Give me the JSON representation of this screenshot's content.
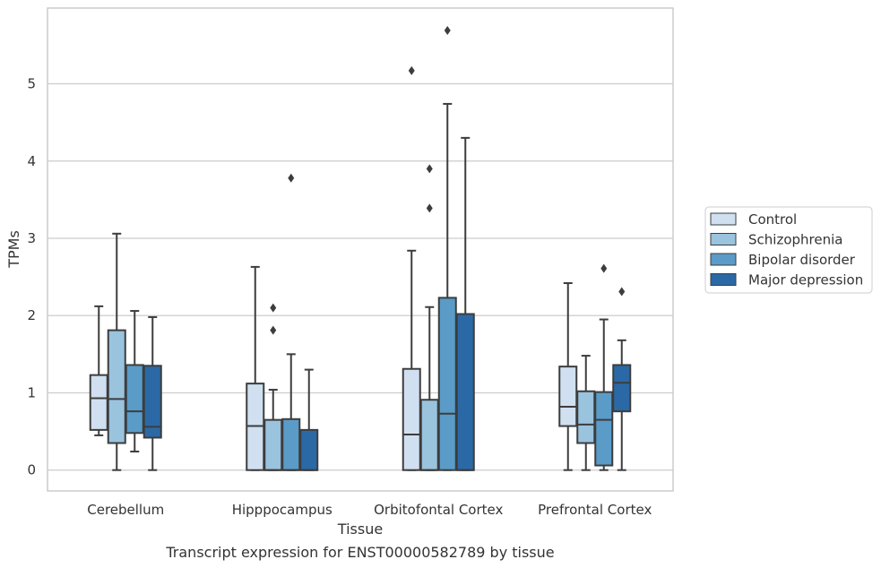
{
  "chart_data": {
    "type": "box",
    "title": "",
    "caption": "Transcript expression for ENST00000582789 by tissue",
    "xlabel": "Tissue",
    "ylabel": "TPMs",
    "ylim": [
      -0.27,
      5.98
    ],
    "yticks": [
      0,
      1,
      2,
      3,
      4,
      5
    ],
    "grid": "horizontal",
    "legend_position": "right",
    "categories": [
      "Cerebellum",
      "Hipppocampus",
      "Orbitofontal Cortex",
      "Prefrontal Cortex"
    ],
    "series": [
      {
        "name": "Control",
        "color": "#d0e0f1",
        "boxes": [
          {
            "whisker_low": 0.45,
            "q1": 0.52,
            "median": 0.93,
            "q3": 1.23,
            "whisker_high": 2.12,
            "outliers": []
          },
          {
            "whisker_low": 0.0,
            "q1": 0.0,
            "median": 0.57,
            "q3": 1.12,
            "whisker_high": 2.63,
            "outliers": []
          },
          {
            "whisker_low": 0.0,
            "q1": 0.0,
            "median": 0.46,
            "q3": 1.31,
            "whisker_high": 2.84,
            "outliers": [
              5.17
            ]
          },
          {
            "whisker_low": 0.0,
            "q1": 0.57,
            "median": 0.82,
            "q3": 1.34,
            "whisker_high": 2.42,
            "outliers": []
          }
        ]
      },
      {
        "name": "Schizophrenia",
        "color": "#9ac3de",
        "boxes": [
          {
            "whisker_low": 0.0,
            "q1": 0.35,
            "median": 0.92,
            "q3": 1.81,
            "whisker_high": 3.06,
            "outliers": []
          },
          {
            "whisker_low": 0.0,
            "q1": 0.0,
            "median": 0.0,
            "q3": 0.65,
            "whisker_high": 1.04,
            "outliers": [
              1.81,
              2.1
            ]
          },
          {
            "whisker_low": 0.0,
            "q1": 0.0,
            "median": 0.0,
            "q3": 0.91,
            "whisker_high": 2.11,
            "outliers": [
              3.39,
              3.9
            ]
          },
          {
            "whisker_low": 0.0,
            "q1": 0.35,
            "median": 0.59,
            "q3": 1.02,
            "whisker_high": 1.48,
            "outliers": []
          }
        ]
      },
      {
        "name": "Bipolar disorder",
        "color": "#5a9bc8",
        "boxes": [
          {
            "whisker_low": 0.24,
            "q1": 0.48,
            "median": 0.76,
            "q3": 1.36,
            "whisker_high": 2.06,
            "outliers": []
          },
          {
            "whisker_low": 0.0,
            "q1": 0.0,
            "median": 0.0,
            "q3": 0.66,
            "whisker_high": 1.5,
            "outliers": [
              3.78
            ]
          },
          {
            "whisker_low": 0.0,
            "q1": 0.0,
            "median": 0.73,
            "q3": 2.23,
            "whisker_high": 4.74,
            "outliers": [
              5.69
            ]
          },
          {
            "whisker_low": 0.0,
            "q1": 0.06,
            "median": 0.65,
            "q3": 1.01,
            "whisker_high": 1.95,
            "outliers": [
              2.61
            ]
          }
        ]
      },
      {
        "name": "Major depression",
        "color": "#2b69a6",
        "boxes": [
          {
            "whisker_low": 0.0,
            "q1": 0.42,
            "median": 0.56,
            "q3": 1.35,
            "whisker_high": 1.98,
            "outliers": []
          },
          {
            "whisker_low": 0.0,
            "q1": 0.0,
            "median": 0.0,
            "q3": 0.52,
            "whisker_high": 1.3,
            "outliers": []
          },
          {
            "whisker_low": 0.0,
            "q1": 0.0,
            "median": 0.0,
            "q3": 2.02,
            "whisker_high": 4.3,
            "outliers": []
          },
          {
            "whisker_low": 0.0,
            "q1": 0.76,
            "median": 1.13,
            "q3": 1.36,
            "whisker_high": 1.68,
            "outliers": [
              2.31
            ]
          }
        ]
      }
    ]
  }
}
